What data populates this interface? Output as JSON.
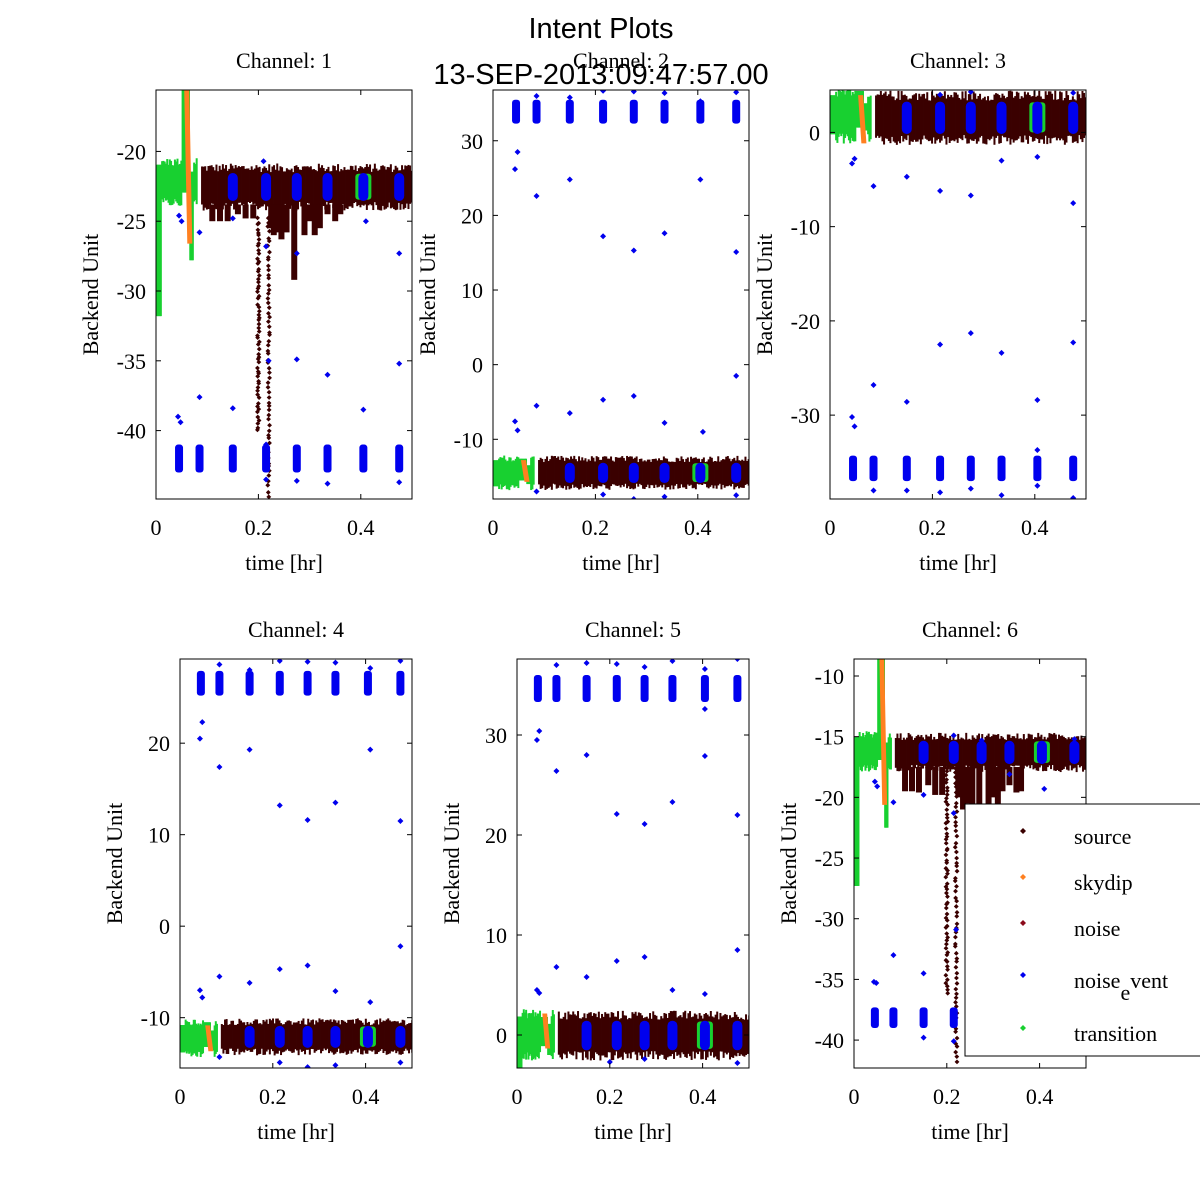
{
  "chart_data": {
    "type": "scatter",
    "title": "Intent Plots",
    "subtitle": "13-SEP-2013:09:47:57.00",
    "legend": {
      "placement": "bottom-right (overlapping Channel 6)",
      "entries": [
        {
          "name": "source",
          "label_main": "source",
          "label_sub": "",
          "label_tail": "",
          "color": "#3a0000"
        },
        {
          "name": "skydip",
          "label_main": "skydip",
          "label_sub": "",
          "label_tail": "",
          "color": "#ff8020"
        },
        {
          "name": "noise",
          "label_main": "noise",
          "label_sub": "",
          "label_tail": "",
          "color": "#8b0a1a"
        },
        {
          "name": "noise_event",
          "label_main": "noise",
          "label_sub": "e",
          "label_tail": "vent",
          "color": "#0000ee"
        },
        {
          "name": "transition",
          "label_main": "transition",
          "label_sub": "",
          "label_tail": "",
          "color": "#18d030"
        }
      ]
    },
    "event_times_hr": [
      0.045,
      0.085,
      0.15,
      0.215,
      0.275,
      0.335,
      0.405,
      0.475
    ],
    "panels": [
      {
        "title": "Channel: 1",
        "xlabel": "time [hr]",
        "ylabel": "Backend Unit",
        "xlim": [
          0,
          0.5
        ],
        "ylim": [
          -44.9,
          -15.6
        ],
        "xticks": [
          0,
          0.2,
          0.4
        ],
        "xtick_labels": [
          "0",
          "0.2",
          "0.4"
        ],
        "yticks": [
          -40,
          -35,
          -30,
          -25,
          -20
        ],
        "ytick_labels": [
          "-40",
          "-35",
          "-30",
          "-25",
          "-20"
        ],
        "source_band": [
          -23.8,
          -21.3
        ],
        "source_dips": [
          [
            0.11,
            -25
          ],
          [
            0.125,
            -25
          ],
          [
            0.14,
            -25
          ],
          [
            0.16,
            -24.5
          ],
          [
            0.175,
            -24.8
          ],
          [
            0.19,
            -24.8
          ],
          [
            0.225,
            -25.5
          ],
          [
            0.23,
            -26
          ],
          [
            0.235,
            -25.8
          ],
          [
            0.245,
            -26.3
          ],
          [
            0.255,
            -25.8
          ],
          [
            0.27,
            -29.2
          ],
          [
            0.29,
            -26
          ],
          [
            0.3,
            -25
          ],
          [
            0.31,
            -26
          ],
          [
            0.32,
            -25.5
          ],
          [
            0.335,
            -24.5
          ],
          [
            0.35,
            -25
          ],
          [
            0.36,
            -24.5
          ]
        ],
        "source_streaks": [
          [
            0.2,
            -24.8,
            -40
          ],
          [
            0.22,
            -24.8,
            -45
          ]
        ],
        "event_band": [
          -43,
          -41
        ],
        "event_high_band": null,
        "transition_start": {
          "level": -22.2,
          "min": -31.8,
          "peak": -15.6
        },
        "skydip_peak": -15.6,
        "skydip_min": -26.5,
        "transition_after_skydip_min": -27.8,
        "outliers": [
          [
            0.043,
            -39
          ],
          [
            0.048,
            -39.4
          ],
          [
            0.045,
            -24.6
          ],
          [
            0.05,
            -25
          ],
          [
            0.085,
            -37.6
          ],
          [
            0.085,
            -25.8
          ],
          [
            0.15,
            -38.4
          ],
          [
            0.15,
            -24.8
          ],
          [
            0.21,
            -20.7
          ],
          [
            0.215,
            -26.8
          ],
          [
            0.22,
            -35
          ],
          [
            0.275,
            -27.3
          ],
          [
            0.275,
            -34.9
          ],
          [
            0.275,
            -43.6
          ],
          [
            0.335,
            -36
          ],
          [
            0.335,
            -43.8
          ],
          [
            0.405,
            -38.5
          ],
          [
            0.41,
            -25
          ],
          [
            0.475,
            -27.3
          ],
          [
            0.475,
            -35.2
          ],
          [
            0.475,
            -43.7
          ],
          [
            0.215,
            -43.5
          ],
          [
            0.215,
            -41
          ]
        ]
      },
      {
        "title": "Channel: 2",
        "xlabel": "time [hr]",
        "ylabel": "Backend Unit",
        "xlim": [
          0,
          0.5
        ],
        "ylim": [
          -18,
          36.8
        ],
        "xticks": [
          0,
          0.2,
          0.4
        ],
        "xtick_labels": [
          "0",
          "0.2",
          "0.4"
        ],
        "yticks": [
          -10,
          0,
          10,
          20,
          30
        ],
        "ytick_labels": [
          "-10",
          "0",
          "10",
          "20",
          "30"
        ],
        "source_band": [
          -16.2,
          -12.8
        ],
        "source_dips": [],
        "source_streaks": [],
        "event_band": [
          32.3,
          35.5
        ],
        "event_high_band": null,
        "transition_start": {
          "level": -14.5,
          "min": -16.3,
          "peak": -12.6
        },
        "skydip_peak": -13,
        "skydip_min": -15.5,
        "transition_after_skydip_min": -16,
        "outliers": [
          [
            0.043,
            26.2
          ],
          [
            0.048,
            28.5
          ],
          [
            0.085,
            22.6
          ],
          [
            0.15,
            24.8
          ],
          [
            0.215,
            17.2
          ],
          [
            0.275,
            15.3
          ],
          [
            0.335,
            17.6
          ],
          [
            0.405,
            24.8
          ],
          [
            0.475,
            15.1
          ],
          [
            0.043,
            -7.6
          ],
          [
            0.048,
            -8.8
          ],
          [
            0.085,
            -5.5
          ],
          [
            0.15,
            -6.5
          ],
          [
            0.215,
            -4.7
          ],
          [
            0.275,
            -4.2
          ],
          [
            0.335,
            -7.8
          ],
          [
            0.41,
            -9
          ],
          [
            0.475,
            -1.5
          ],
          [
            0.085,
            36
          ],
          [
            0.15,
            35.8
          ],
          [
            0.215,
            36.7
          ],
          [
            0.275,
            36.6
          ],
          [
            0.335,
            36.4
          ],
          [
            0.405,
            35.3
          ],
          [
            0.475,
            36.5
          ],
          [
            0.085,
            -17
          ],
          [
            0.215,
            -17.4
          ],
          [
            0.275,
            -18
          ],
          [
            0.335,
            -17.7
          ],
          [
            0.475,
            -17.5
          ]
        ]
      },
      {
        "title": "Channel: 3",
        "xlabel": "time [hr]",
        "ylabel": "Backend Unit",
        "xlim": [
          0,
          0.5
        ],
        "ylim": [
          -38.9,
          4.5
        ],
        "xticks": [
          0,
          0.2,
          0.4
        ],
        "xtick_labels": [
          "0",
          "0.2",
          "0.4"
        ],
        "yticks": [
          -30,
          -20,
          -10,
          0
        ],
        "ytick_labels": [
          "-30",
          "-20",
          "-10",
          "0"
        ],
        "source_band": [
          -0.6,
          3.7
        ],
        "source_dips": [],
        "source_streaks": [],
        "event_band": [
          -37,
          -34.3
        ],
        "event_high_band": null,
        "transition_start": {
          "level": 1.8,
          "min": -0.2,
          "peak": 4.4
        },
        "skydip_peak": 3.8,
        "skydip_min": -1,
        "transition_after_skydip_min": 0.2,
        "outliers": [
          [
            0.043,
            -3.3
          ],
          [
            0.048,
            -2.8
          ],
          [
            0.085,
            -5.7
          ],
          [
            0.15,
            -4.7
          ],
          [
            0.215,
            -6.2
          ],
          [
            0.275,
            -6.7
          ],
          [
            0.335,
            -3
          ],
          [
            0.405,
            -2.6
          ],
          [
            0.475,
            -7.5
          ],
          [
            0.043,
            -30.2
          ],
          [
            0.048,
            -31.2
          ],
          [
            0.085,
            -26.8
          ],
          [
            0.15,
            -28.6
          ],
          [
            0.215,
            -22.5
          ],
          [
            0.275,
            -21.3
          ],
          [
            0.335,
            -23.4
          ],
          [
            0.405,
            -28.4
          ],
          [
            0.475,
            -22.3
          ],
          [
            0.085,
            -38
          ],
          [
            0.15,
            -38
          ],
          [
            0.215,
            -38.2
          ],
          [
            0.275,
            -37.8
          ],
          [
            0.335,
            -38.5
          ],
          [
            0.405,
            -37.5
          ],
          [
            0.475,
            -38.8
          ],
          [
            0.405,
            -33.7
          ],
          [
            0.215,
            4
          ],
          [
            0.275,
            4.3
          ],
          [
            0.475,
            4.2
          ]
        ]
      },
      {
        "title": "Channel: 4",
        "xlabel": "time [hr]",
        "ylabel": "Backend Unit",
        "xlim": [
          0,
          0.5
        ],
        "ylim": [
          -15.5,
          29.2
        ],
        "xticks": [
          0,
          0.2,
          0.4
        ],
        "xtick_labels": [
          "0",
          "0.2",
          "0.4"
        ],
        "yticks": [
          -10,
          0,
          10,
          20
        ],
        "ytick_labels": [
          "-10",
          "0",
          "10",
          "20"
        ],
        "source_band": [
          -13.6,
          -10.6
        ],
        "source_dips": [],
        "source_streaks": [],
        "event_band": [
          25.2,
          27.9
        ],
        "event_high_band": null,
        "transition_start": {
          "level": -12.3,
          "min": -13.8,
          "peak": -10.5
        },
        "skydip_peak": -11,
        "skydip_min": -13.5,
        "transition_after_skydip_min": -13.6,
        "outliers": [
          [
            0.043,
            20.5
          ],
          [
            0.048,
            22.3
          ],
          [
            0.085,
            17.4
          ],
          [
            0.15,
            19.3
          ],
          [
            0.215,
            13.2
          ],
          [
            0.275,
            11.6
          ],
          [
            0.335,
            13.5
          ],
          [
            0.41,
            19.3
          ],
          [
            0.475,
            11.5
          ],
          [
            0.043,
            -7
          ],
          [
            0.048,
            -7.8
          ],
          [
            0.085,
            -5.5
          ],
          [
            0.15,
            -6.2
          ],
          [
            0.215,
            -4.7
          ],
          [
            0.275,
            -4.3
          ],
          [
            0.335,
            -7.1
          ],
          [
            0.41,
            -8.3
          ],
          [
            0.475,
            -2.2
          ],
          [
            0.085,
            28.6
          ],
          [
            0.15,
            28
          ],
          [
            0.215,
            29
          ],
          [
            0.275,
            28.9
          ],
          [
            0.335,
            28.8
          ],
          [
            0.41,
            28.2
          ],
          [
            0.475,
            29
          ],
          [
            0.085,
            -14.3
          ],
          [
            0.215,
            -14.9
          ],
          [
            0.275,
            -15.4
          ],
          [
            0.335,
            -15.2
          ],
          [
            0.475,
            -14.9
          ]
        ]
      },
      {
        "title": "Channel: 5",
        "xlabel": "time [hr]",
        "ylabel": "Backend Unit",
        "xlim": [
          0,
          0.5
        ],
        "ylim": [
          -3.3,
          37.6
        ],
        "xticks": [
          0,
          0.2,
          0.4
        ],
        "xtick_labels": [
          "0",
          "0.2",
          "0.4"
        ],
        "yticks": [
          0,
          10,
          20,
          30
        ],
        "ytick_labels": [
          "0",
          "10",
          "20",
          "30"
        ],
        "source_band": [
          -1.9,
          1.8
        ],
        "source_dips": [],
        "source_streaks": [],
        "event_band": [
          33.3,
          36
        ],
        "event_high_band": null,
        "transition_start": {
          "level": 0,
          "min": -3.3,
          "peak": 1.8
        },
        "skydip_peak": 2,
        "skydip_min": -1.2,
        "transition_after_skydip_min": -2,
        "outliers": [
          [
            0.043,
            29.5
          ],
          [
            0.048,
            30.4
          ],
          [
            0.085,
            26.4
          ],
          [
            0.15,
            28
          ],
          [
            0.215,
            22.1
          ],
          [
            0.275,
            21.1
          ],
          [
            0.335,
            23.3
          ],
          [
            0.405,
            27.9
          ],
          [
            0.475,
            22
          ],
          [
            0.043,
            4.5
          ],
          [
            0.048,
            4.2
          ],
          [
            0.085,
            6.8
          ],
          [
            0.15,
            5.8
          ],
          [
            0.215,
            7.4
          ],
          [
            0.275,
            7.8
          ],
          [
            0.335,
            4.5
          ],
          [
            0.405,
            4.1
          ],
          [
            0.475,
            8.5
          ],
          [
            0.085,
            37
          ],
          [
            0.15,
            37.2
          ],
          [
            0.215,
            37.1
          ],
          [
            0.275,
            36.8
          ],
          [
            0.335,
            37.4
          ],
          [
            0.405,
            36.6
          ],
          [
            0.475,
            37.6
          ],
          [
            0.405,
            32.6
          ],
          [
            0.275,
            -2.4
          ],
          [
            0.475,
            -2.8
          ],
          [
            0.2,
            -2.7
          ]
        ]
      },
      {
        "title": "Channel: 6",
        "xlabel": "time [hr]",
        "ylabel": "Backend Unit",
        "xlim": [
          0,
          0.5
        ],
        "ylim": [
          -42.3,
          -8.6
        ],
        "xticks": [
          0,
          0.2,
          0.4
        ],
        "xtick_labels": [
          "0",
          "0.2",
          "0.4"
        ],
        "yticks": [
          -40,
          -35,
          -30,
          -25,
          -20,
          -15,
          -10
        ],
        "ytick_labels": [
          "-40",
          "-35",
          "-30",
          "-25",
          "-20",
          "-15",
          "-10"
        ],
        "source_band": [
          -17.5,
          -15.1
        ],
        "source_dips": [
          [
            0.11,
            -19.5
          ],
          [
            0.125,
            -19.5
          ],
          [
            0.14,
            -19.6
          ],
          [
            0.16,
            -19
          ],
          [
            0.175,
            -19.8
          ],
          [
            0.19,
            -19.8
          ],
          [
            0.225,
            -20
          ],
          [
            0.235,
            -21
          ],
          [
            0.245,
            -20.5
          ],
          [
            0.255,
            -21
          ],
          [
            0.27,
            -22
          ],
          [
            0.29,
            -21
          ],
          [
            0.3,
            -20
          ],
          [
            0.31,
            -21
          ],
          [
            0.32,
            -19.5
          ],
          [
            0.335,
            -19
          ],
          [
            0.35,
            -19.6
          ],
          [
            0.36,
            -19.5
          ]
        ],
        "source_streaks": [
          [
            0.2,
            -17.5,
            -36.5
          ],
          [
            0.22,
            -17.5,
            -42.3
          ]
        ],
        "event_band": [
          -39,
          -37.3
        ],
        "event_high_band": null,
        "transition_start": {
          "level": -16.2,
          "min": -27.3,
          "peak": -8.6
        },
        "skydip_peak": -8.6,
        "skydip_min": -20.5,
        "transition_after_skydip_min": -22.5,
        "outliers": [
          [
            0.043,
            -35.2
          ],
          [
            0.048,
            -35.3
          ],
          [
            0.045,
            -18.7
          ],
          [
            0.05,
            -19.1
          ],
          [
            0.085,
            -33
          ],
          [
            0.085,
            -20.4
          ],
          [
            0.15,
            -34.5
          ],
          [
            0.15,
            -19.8
          ],
          [
            0.215,
            -14.9
          ],
          [
            0.215,
            -21.3
          ],
          [
            0.22,
            -30.9
          ],
          [
            0.275,
            -15.3
          ],
          [
            0.335,
            -18.1
          ],
          [
            0.335,
            -15.7
          ],
          [
            0.41,
            -19.3
          ],
          [
            0.475,
            -15.2
          ],
          [
            0.15,
            -39.8
          ],
          [
            0.215,
            -40.1
          ]
        ]
      }
    ]
  }
}
